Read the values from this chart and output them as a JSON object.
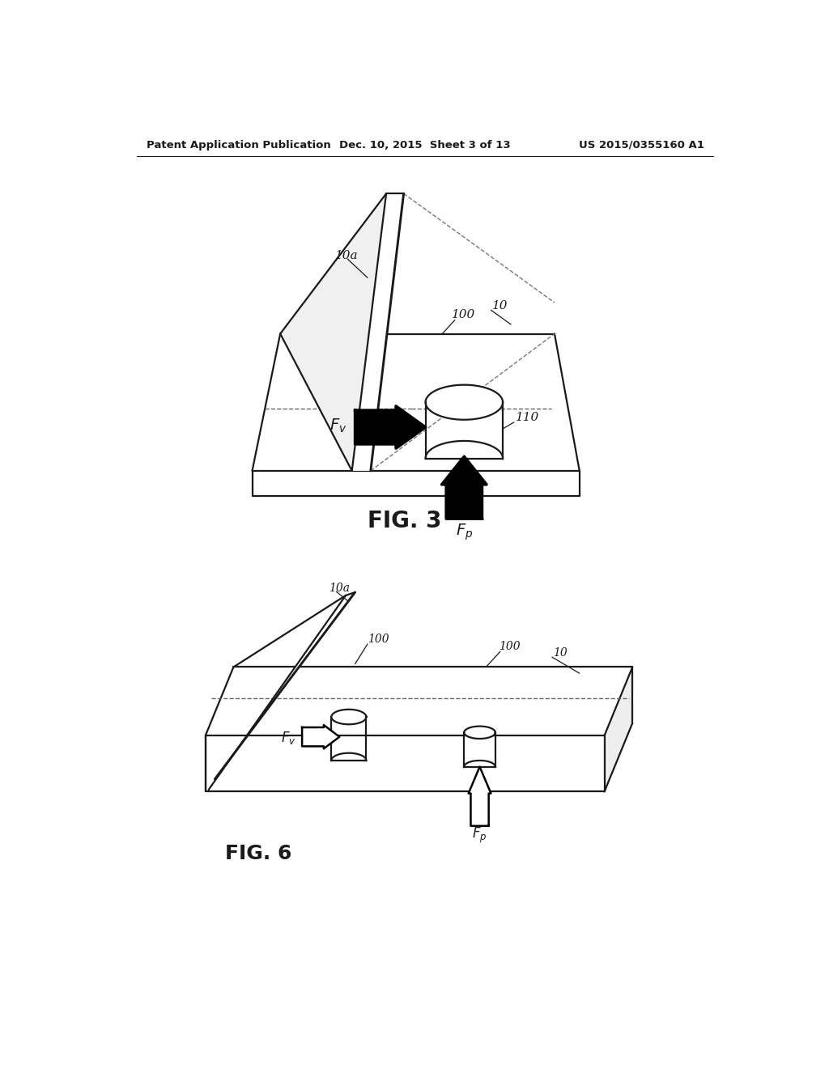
{
  "bg_color": "#ffffff",
  "header_left": "Patent Application Publication",
  "header_mid": "Dec. 10, 2015  Sheet 3 of 13",
  "header_right": "US 2015/0355160 A1",
  "fig3_caption": "FIG. 3",
  "fig6_caption": "FIG. 6",
  "lc": "#1a1a1a",
  "lw": 1.6
}
